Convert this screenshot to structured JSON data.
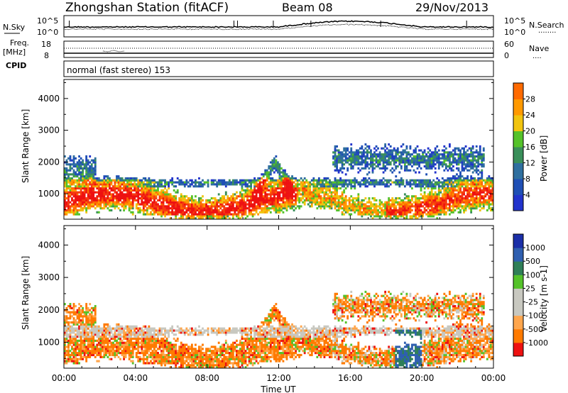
{
  "header": {
    "station": "Zhongshan Station (fitACF)",
    "beam": "Beam 08",
    "date": "29/Nov/2013"
  },
  "mode_label": "normal (fast stereo) 153",
  "side_labels": {
    "nsky": "N.Sky",
    "freq_top": "Freq.",
    "freq_unit": "[MHz]",
    "cpid": "CPID",
    "nsearch": "N.Search",
    "nave": "Nave",
    "dotted_line": "........",
    "nave_dots": "...."
  },
  "strip_ticks": {
    "noise_left": [
      "10^5",
      "10^0"
    ],
    "noise_right": [
      "10^5",
      "10^0"
    ],
    "freq_left": [
      "18",
      "8"
    ],
    "freq_right": [
      "60",
      "0"
    ]
  },
  "colors": {
    "power": [
      "#2233cc",
      "#1f4fb5",
      "#2f6f9f",
      "#3a8f5a",
      "#55c22a",
      "#f1c40f",
      "#ff9900",
      "#ff6a00",
      "#f53a10",
      "#ee1111"
    ],
    "velocity": [
      "#ee1111",
      "#ff7a00",
      "#ffa64d",
      "#c8c8c0",
      "#c8c8c0",
      "#55c22a",
      "#2f7f58",
      "#2f5fb0",
      "#1b2fa8"
    ]
  },
  "chart_data": [
    {
      "type": "heatmap",
      "name": "power",
      "ylabel": "Slant Range [km]",
      "yticks": [
        1000,
        2000,
        3000,
        4000
      ],
      "ylim": [
        200,
        4600
      ],
      "xlim": [
        0,
        24
      ],
      "colorbar": {
        "label": "Power [dB]",
        "ticks": [
          "4",
          "8",
          "12",
          "16",
          "20",
          "24",
          "28"
        ]
      }
    },
    {
      "type": "heatmap",
      "name": "velocity",
      "ylabel": "Slant Range [km]",
      "yticks": [
        1000,
        2000,
        3000,
        4000
      ],
      "ylim": [
        200,
        4600
      ],
      "xlim": [
        0,
        24
      ],
      "xticks": [
        "00:00",
        "04:00",
        "08:00",
        "12:00",
        "16:00",
        "20:00",
        "00:00"
      ],
      "xlabel": "Time UT",
      "colorbar": {
        "label": "Velocity [m s-1]",
        "ticks": [
          "1000",
          "500",
          "100",
          "25",
          "-25",
          "-100",
          "-500",
          "-1000"
        ]
      }
    }
  ]
}
